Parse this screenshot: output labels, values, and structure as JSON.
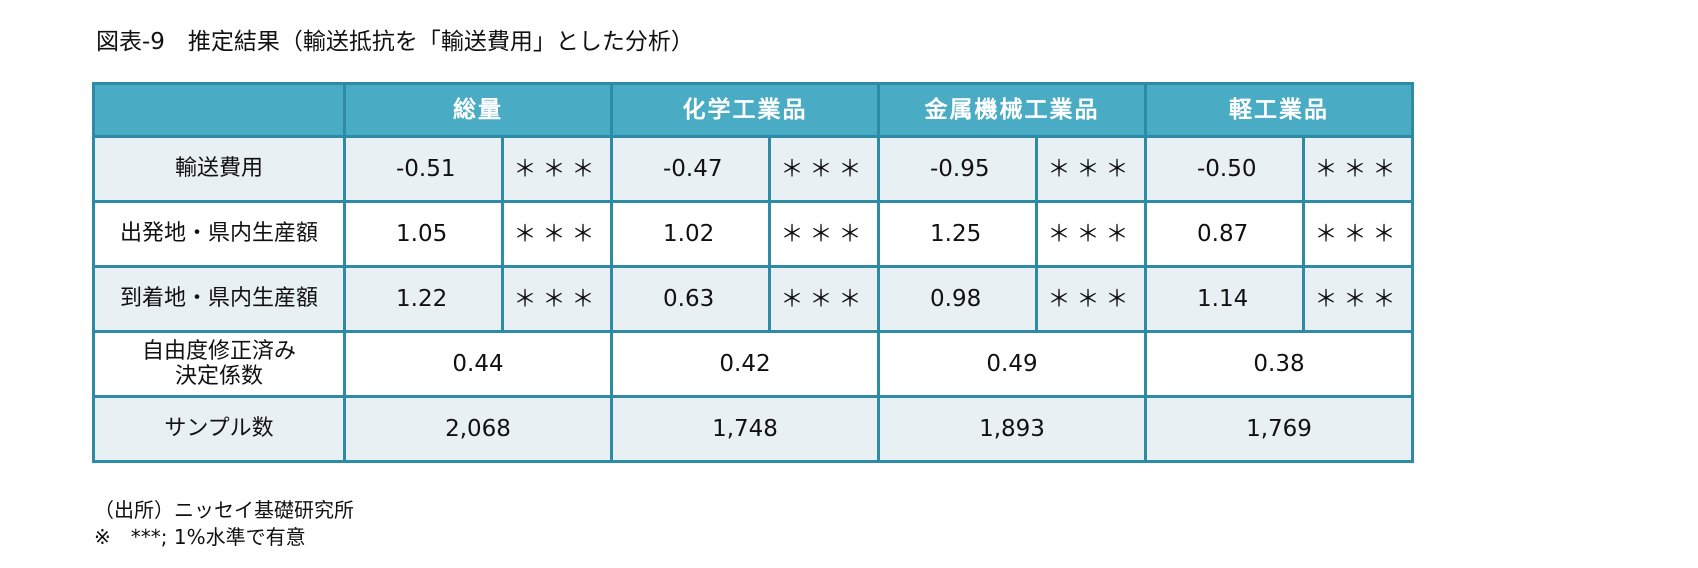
{
  "header": {
    "title": "図表-9　推定結果（輸送抵抗を「輸送費用」とした分析）"
  },
  "table": {
    "groups": [
      "総量",
      "化学工業品",
      "金属機械工業品",
      "軽工業品"
    ],
    "rows": [
      {
        "label": "輸送費用",
        "cells": [
          {
            "value": "-0.51",
            "sig": "＊＊＊"
          },
          {
            "value": "-0.47",
            "sig": "＊＊＊"
          },
          {
            "value": "-0.95",
            "sig": "＊＊＊"
          },
          {
            "value": "-0.50",
            "sig": "＊＊＊"
          }
        ]
      },
      {
        "label": "出発地・県内生産額",
        "cells": [
          {
            "value": "1.05",
            "sig": "＊＊＊"
          },
          {
            "value": "1.02",
            "sig": "＊＊＊"
          },
          {
            "value": "1.25",
            "sig": "＊＊＊"
          },
          {
            "value": "0.87",
            "sig": "＊＊＊"
          }
        ]
      },
      {
        "label": "到着地・県内生産額",
        "cells": [
          {
            "value": "1.22",
            "sig": "＊＊＊"
          },
          {
            "value": "0.63",
            "sig": "＊＊＊"
          },
          {
            "value": "0.98",
            "sig": "＊＊＊"
          },
          {
            "value": "1.14",
            "sig": "＊＊＊"
          }
        ]
      },
      {
        "label": "自由度修正済み\n決定係数",
        "cells": [
          {
            "value": "0.44"
          },
          {
            "value": "0.42"
          },
          {
            "value": "0.49"
          },
          {
            "value": "0.38"
          }
        ]
      },
      {
        "label": "サンプル数",
        "cells": [
          {
            "value": "2,068"
          },
          {
            "value": "1,748"
          },
          {
            "value": "1,893"
          },
          {
            "value": "1,769"
          }
        ]
      }
    ]
  },
  "footer": {
    "source": "（出所）ニッセイ基礎研究所",
    "note": "※　***; 1%水準で有意"
  }
}
